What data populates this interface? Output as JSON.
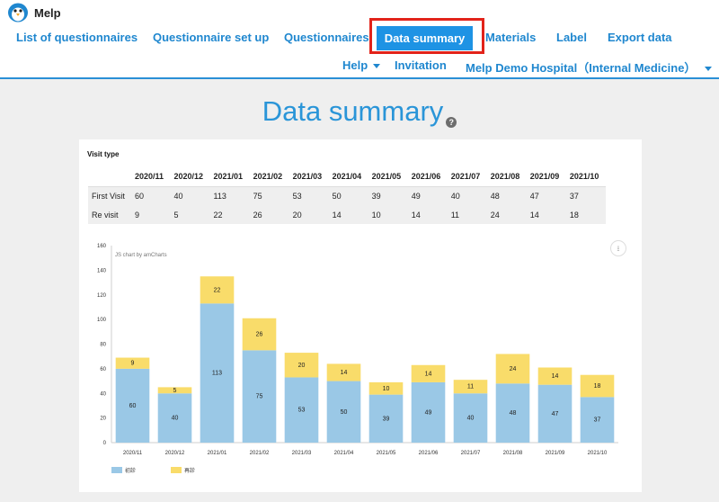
{
  "app": {
    "name": "Melp"
  },
  "nav": {
    "row1": [
      {
        "label": "List of questionnaires"
      },
      {
        "label": "Questionnaire set up"
      },
      {
        "label": "Questionnaires"
      },
      {
        "label": "Data summary",
        "active": true
      },
      {
        "label": "Materials"
      },
      {
        "label": "Label"
      },
      {
        "label": "Export data"
      }
    ],
    "row2": [
      {
        "label": "Help"
      },
      {
        "label": "Invitation"
      },
      {
        "label": "Melp Demo Hospital（Internal Medicine）"
      }
    ]
  },
  "page": {
    "title": "Data summary",
    "help_icon": "question-icon"
  },
  "summary": {
    "section_label": "Visit type",
    "months": [
      "2020/11",
      "2020/12",
      "2021/01",
      "2021/02",
      "2021/03",
      "2021/04",
      "2021/05",
      "2021/06",
      "2021/07",
      "2021/08",
      "2021/09",
      "2021/10"
    ],
    "rows": [
      {
        "label": "First Visit",
        "values": [
          60,
          40,
          113,
          75,
          53,
          50,
          39,
          49,
          40,
          48,
          47,
          37
        ]
      },
      {
        "label": "Re visit",
        "values": [
          9,
          5,
          22,
          26,
          20,
          14,
          10,
          14,
          11,
          24,
          14,
          18
        ]
      }
    ]
  },
  "chart_data": {
    "type": "bar",
    "stacked": true,
    "credit": "JS chart by amCharts",
    "categories": [
      "2020/11",
      "2020/12",
      "2021/01",
      "2021/02",
      "2021/03",
      "2021/04",
      "2021/05",
      "2021/06",
      "2021/07",
      "2021/08",
      "2021/09",
      "2021/10"
    ],
    "series": [
      {
        "name": "初診",
        "color": "#9ac8e6",
        "values": [
          60,
          40,
          113,
          75,
          53,
          50,
          39,
          49,
          40,
          48,
          47,
          37
        ]
      },
      {
        "name": "再診",
        "color": "#f9dc6a",
        "values": [
          9,
          5,
          22,
          26,
          20,
          14,
          10,
          14,
          11,
          24,
          14,
          18
        ]
      }
    ],
    "yticks": [
      0,
      20,
      40,
      60,
      80,
      100,
      120,
      140,
      160
    ],
    "ylim": [
      0,
      160
    ],
    "legend": "bottom-left",
    "grid": false
  }
}
